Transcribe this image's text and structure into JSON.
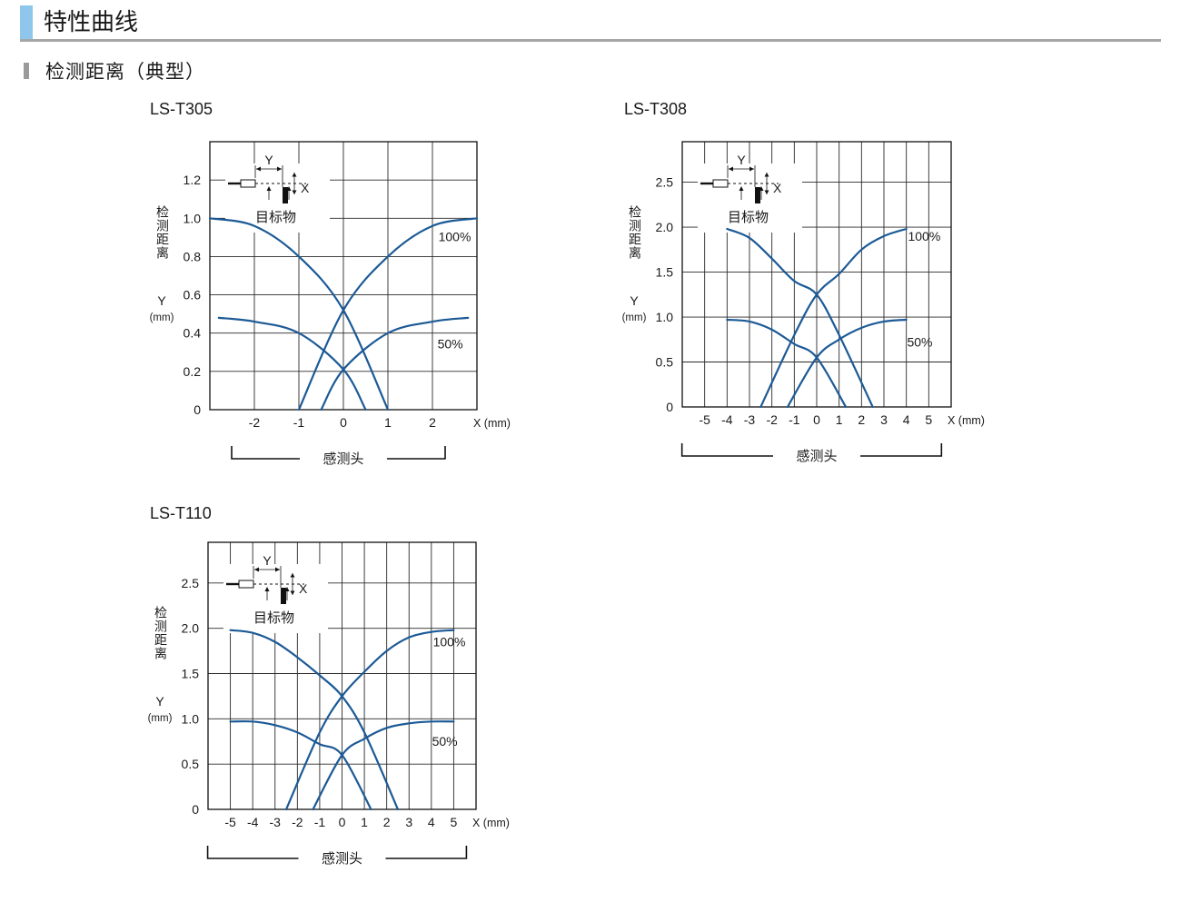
{
  "header": {
    "title": "特性曲线"
  },
  "section": {
    "title": "检测距离（典型）"
  },
  "colors": {
    "curve": "#1c5a96",
    "grid": "#2a2a2a",
    "header_accent": "#8ec6ec",
    "header_rule": "#a6a6a6"
  },
  "chart_data": [
    {
      "type": "line",
      "title": "LS-T305",
      "xlabel": "X (mm)",
      "ylabel": "检测距离",
      "ylabel_symbol": "Y",
      "ylabel_unit": "(mm)",
      "xaxis_caption": "感测头",
      "diagram_target_label": "目标物",
      "diagram_x_label": "X",
      "diagram_y_label": "Y",
      "xlim": [
        -3,
        3
      ],
      "ylim": [
        0,
        1.4
      ],
      "xticks": [
        -2,
        -1,
        0,
        1,
        2
      ],
      "xtick_labels": [
        "-2",
        "-1",
        "0",
        "1",
        "2"
      ],
      "yticks": [
        0,
        0.2,
        0.4,
        0.6,
        0.8,
        1.0,
        1.2
      ],
      "ytick_labels": [
        "0",
        "0.2",
        "0.4",
        "0.6",
        "0.8",
        "1.0",
        "1.2"
      ],
      "series": [
        {
          "name": "100%",
          "side": "left",
          "points": [
            [
              -3.0,
              1.0
            ],
            [
              -2.0,
              0.96
            ],
            [
              -1.0,
              0.8
            ],
            [
              0.0,
              0.52
            ],
            [
              1.0,
              0.0
            ]
          ]
        },
        {
          "name": "100%",
          "side": "right",
          "points": [
            [
              -1.0,
              0.0
            ],
            [
              0.0,
              0.52
            ],
            [
              1.0,
              0.8
            ],
            [
              2.0,
              0.96
            ],
            [
              3.0,
              1.0
            ]
          ]
        },
        {
          "name": "50%",
          "side": "left",
          "points": [
            [
              -2.8,
              0.48
            ],
            [
              -2.0,
              0.46
            ],
            [
              -1.0,
              0.4
            ],
            [
              0.0,
              0.21
            ],
            [
              0.5,
              0.0
            ]
          ]
        },
        {
          "name": "50%",
          "side": "right",
          "points": [
            [
              -0.5,
              0.0
            ],
            [
              0.0,
              0.21
            ],
            [
              1.0,
              0.4
            ],
            [
              2.0,
              0.46
            ],
            [
              2.8,
              0.48
            ]
          ]
        }
      ],
      "legend": {
        "labels": [
          {
            "text": "100%",
            "x": 2.5,
            "y": 0.88
          },
          {
            "text": "50%",
            "x": 2.4,
            "y": 0.32
          }
        ]
      }
    },
    {
      "type": "line",
      "title": "LS-T308",
      "xlabel": "X (mm)",
      "ylabel": "检测距离",
      "ylabel_symbol": "Y",
      "ylabel_unit": "(mm)",
      "xaxis_caption": "感测头",
      "diagram_target_label": "目标物",
      "diagram_x_label": "X",
      "diagram_y_label": "Y",
      "xlim": [
        -6,
        6
      ],
      "ylim": [
        0,
        2.95
      ],
      "xticks": [
        -5,
        -4,
        -3,
        -2,
        -1,
        0,
        1,
        2,
        3,
        4,
        5
      ],
      "xtick_labels": [
        "-5",
        "-4",
        "-3",
        "-2",
        "-1",
        "0",
        "1",
        "2",
        "3",
        "4",
        "5"
      ],
      "yticks": [
        0,
        0.5,
        1.0,
        1.5,
        2.0,
        2.5
      ],
      "ytick_labels": [
        "0",
        "0.5",
        "1.0",
        "1.5",
        "2.0",
        "2.5"
      ],
      "series": [
        {
          "name": "100%",
          "side": "left",
          "points": [
            [
              -4.0,
              1.98
            ],
            [
              -3.0,
              1.88
            ],
            [
              -2.0,
              1.65
            ],
            [
              -1.0,
              1.4
            ],
            [
              0.0,
              1.25
            ],
            [
              1.0,
              0.8
            ],
            [
              2.5,
              0.0
            ]
          ]
        },
        {
          "name": "100%",
          "side": "right",
          "points": [
            [
              -2.5,
              0.0
            ],
            [
              -1.0,
              0.8
            ],
            [
              0.0,
              1.25
            ],
            [
              1.0,
              1.48
            ],
            [
              2.0,
              1.75
            ],
            [
              3.0,
              1.9
            ],
            [
              4.0,
              1.98
            ]
          ]
        },
        {
          "name": "50%",
          "side": "left",
          "points": [
            [
              -4.0,
              0.97
            ],
            [
              -3.0,
              0.95
            ],
            [
              -2.0,
              0.86
            ],
            [
              -1.0,
              0.7
            ],
            [
              0.0,
              0.55
            ],
            [
              1.3,
              0.0
            ]
          ]
        },
        {
          "name": "50%",
          "side": "right",
          "points": [
            [
              -1.3,
              0.0
            ],
            [
              0.0,
              0.55
            ],
            [
              1.0,
              0.75
            ],
            [
              2.0,
              0.88
            ],
            [
              3.0,
              0.95
            ],
            [
              4.0,
              0.97
            ]
          ]
        }
      ],
      "legend": {
        "labels": [
          {
            "text": "100%",
            "x": 4.8,
            "y": 1.85
          },
          {
            "text": "50%",
            "x": 4.6,
            "y": 0.67
          }
        ]
      }
    },
    {
      "type": "line",
      "title": "LS-T110",
      "xlabel": "X (mm)",
      "ylabel": "检测距离",
      "ylabel_symbol": "Y",
      "ylabel_unit": "(mm)",
      "xaxis_caption": "感测头",
      "diagram_target_label": "目标物",
      "diagram_x_label": "X",
      "diagram_y_label": "Y",
      "xlim": [
        -6,
        6
      ],
      "ylim": [
        0,
        2.95
      ],
      "xticks": [
        -5,
        -4,
        -3,
        -2,
        -1,
        0,
        1,
        2,
        3,
        4,
        5
      ],
      "xtick_labels": [
        "-5",
        "-4",
        "-3",
        "-2",
        "-1",
        "0",
        "1",
        "2",
        "3",
        "4",
        "5"
      ],
      "yticks": [
        0,
        0.5,
        1.0,
        1.5,
        2.0,
        2.5
      ],
      "ytick_labels": [
        "0",
        "0.5",
        "1.0",
        "1.5",
        "2.0",
        "2.5"
      ],
      "series": [
        {
          "name": "100%",
          "side": "left",
          "points": [
            [
              -5.0,
              1.98
            ],
            [
              -4.0,
              1.95
            ],
            [
              -3.0,
              1.85
            ],
            [
              -2.0,
              1.68
            ],
            [
              -1.0,
              1.48
            ],
            [
              0.0,
              1.25
            ],
            [
              1.0,
              0.85
            ],
            [
              2.5,
              0.0
            ]
          ]
        },
        {
          "name": "100%",
          "side": "right",
          "points": [
            [
              -2.5,
              0.0
            ],
            [
              -1.0,
              0.85
            ],
            [
              0.0,
              1.25
            ],
            [
              1.0,
              1.52
            ],
            [
              2.0,
              1.75
            ],
            [
              3.0,
              1.9
            ],
            [
              4.0,
              1.96
            ],
            [
              5.0,
              1.98
            ]
          ]
        },
        {
          "name": "50%",
          "side": "left",
          "points": [
            [
              -5.0,
              0.97
            ],
            [
              -4.0,
              0.97
            ],
            [
              -3.0,
              0.93
            ],
            [
              -2.0,
              0.85
            ],
            [
              -1.0,
              0.72
            ],
            [
              0.0,
              0.6
            ],
            [
              1.3,
              0.0
            ]
          ]
        },
        {
          "name": "50%",
          "side": "right",
          "points": [
            [
              -1.3,
              0.0
            ],
            [
              0.0,
              0.6
            ],
            [
              1.0,
              0.78
            ],
            [
              2.0,
              0.9
            ],
            [
              3.0,
              0.95
            ],
            [
              4.0,
              0.97
            ],
            [
              5.0,
              0.97
            ]
          ]
        }
      ],
      "legend": {
        "labels": [
          {
            "text": "100%",
            "x": 4.8,
            "y": 1.8
          },
          {
            "text": "50%",
            "x": 4.6,
            "y": 0.7
          }
        ]
      }
    }
  ]
}
